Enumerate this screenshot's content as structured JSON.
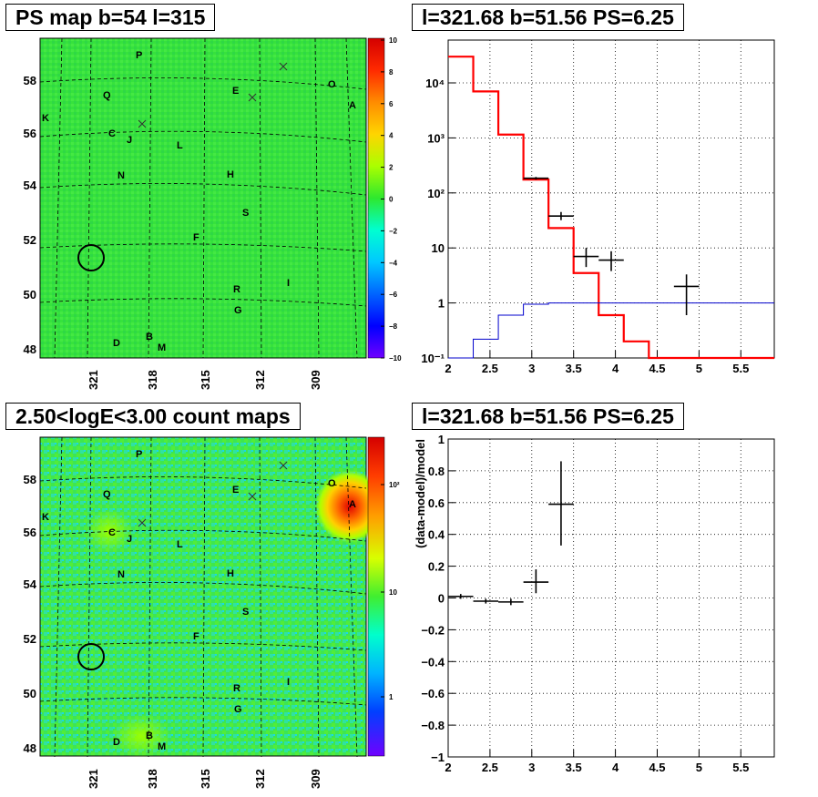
{
  "panels": {
    "ps_map": {
      "title": "PS map b=54 l=315",
      "colorbar_ticks": [
        "10",
        "8",
        "6",
        "4",
        "2",
        "0",
        "−2",
        "−4",
        "−6",
        "−8",
        "−10"
      ],
      "lat_ticks": [
        "58",
        "56",
        "54",
        "52",
        "50",
        "48"
      ],
      "lon_ticks": [
        "321",
        "318",
        "315",
        "312",
        "309"
      ]
    },
    "count_map": {
      "title": "2.50<logE<3.00 count maps",
      "colorbar_ticks": [
        "10²",
        "10",
        "1"
      ],
      "lat_ticks": [
        "58",
        "56",
        "54",
        "52",
        "50",
        "48"
      ],
      "lon_ticks": [
        "321",
        "318",
        "315",
        "312",
        "309"
      ]
    },
    "spectrum": {
      "title": "l=321.68 b=51.56 PS=6.25"
    },
    "residual": {
      "title": "l=321.68 b=51.56 PS=6.25"
    }
  },
  "source_labels": [
    "P",
    "Q",
    "K",
    "C",
    "J",
    "L",
    "N",
    "H",
    "S",
    "F",
    "E",
    "O",
    "A",
    "I",
    "R",
    "G",
    "D",
    "B",
    "M"
  ],
  "chart_data": [
    {
      "type": "heatmap",
      "title": "PS map b=54 l=315",
      "xlabel": "",
      "ylabel": "",
      "xlim": [
        323.5,
        306
      ],
      "ylim": [
        47.6,
        59.4
      ],
      "zlim": [
        -10,
        10
      ],
      "colorbar_ticks": [
        10,
        8,
        6,
        4,
        2,
        0,
        -2,
        -4,
        -6,
        -8,
        -10
      ],
      "circle": {
        "x": 321.68,
        "y": 51.56
      }
    },
    {
      "type": "heatmap",
      "title": "2.50<logE<3.00 count maps",
      "xlabel": "",
      "ylabel": "",
      "xlim": [
        323.5,
        306
      ],
      "ylim": [
        47.6,
        59.4
      ],
      "zscale": "log",
      "colorbar_ticks": [
        100,
        10,
        1
      ],
      "circle": {
        "x": 321.68,
        "y": 51.56
      }
    },
    {
      "type": "line",
      "title": "l=321.68 b=51.56 PS=6.25",
      "xlabel": "",
      "ylabel": "",
      "xlim": [
        2,
        5.9
      ],
      "ylim": [
        0.1,
        60000
      ],
      "yscale": "log",
      "x_ticks": [
        "2",
        "2.5",
        "3",
        "3.5",
        "4",
        "4.5",
        "5",
        "5.5"
      ],
      "y_ticks": [
        "10⁻¹",
        "1",
        "10",
        "10²",
        "10³",
        "10⁴"
      ],
      "grid": true,
      "series": [
        {
          "style": "step",
          "color": "#ff0000",
          "bin_edges": [
            2.0,
            2.3,
            2.6,
            2.9,
            3.2,
            3.5,
            3.8,
            4.1,
            4.4,
            5.9
          ],
          "values": [
            30000,
            7000,
            1150,
            175,
            23,
            3.5,
            0.6,
            0.2,
            0.1
          ]
        },
        {
          "style": "step",
          "color": "#0000cc",
          "bin_edges": [
            2.0,
            2.3,
            2.6,
            2.9,
            3.2,
            5.9
          ],
          "values": [
            0.05,
            0.22,
            0.6,
            0.95,
            1.0
          ]
        },
        {
          "style": "errorbar",
          "color": "#000000",
          "points": [
            {
              "x": 3.05,
              "y": 185,
              "xerr": 0.15,
              "ylo": 175,
              "yhi": 195
            },
            {
              "x": 3.35,
              "y": 38,
              "xerr": 0.15,
              "ylo": 32,
              "yhi": 45
            },
            {
              "x": 3.65,
              "y": 7,
              "xerr": 0.15,
              "ylo": 4.5,
              "yhi": 10
            },
            {
              "x": 3.95,
              "y": 6,
              "xerr": 0.15,
              "ylo": 3.8,
              "yhi": 8.7
            },
            {
              "x": 4.85,
              "y": 2,
              "xerr": 0.15,
              "ylo": 0.6,
              "yhi": 3.3
            }
          ]
        }
      ]
    },
    {
      "type": "scatter",
      "title": "l=321.68 b=51.56 PS=6.25",
      "xlabel": "",
      "ylabel": "(data-model)/model",
      "xlim": [
        2,
        5.9
      ],
      "ylim": [
        -1,
        1
      ],
      "x_ticks": [
        "2",
        "2.5",
        "3",
        "3.5",
        "4",
        "4.5",
        "5",
        "5.5"
      ],
      "y_ticks": [
        "−1",
        "−0.8",
        "−0.6",
        "−0.4",
        "−0.2",
        "0",
        "0.2",
        "0.4",
        "0.6",
        "0.8",
        "1"
      ],
      "grid": true,
      "points": [
        {
          "x": 2.15,
          "y": 0.01,
          "xerr": 0.15,
          "ylo": -0.005,
          "yhi": 0.025
        },
        {
          "x": 2.45,
          "y": -0.02,
          "xerr": 0.15,
          "ylo": -0.035,
          "yhi": -0.005
        },
        {
          "x": 2.75,
          "y": -0.025,
          "xerr": 0.15,
          "ylo": -0.045,
          "yhi": -0.005
        },
        {
          "x": 3.05,
          "y": 0.1,
          "xerr": 0.15,
          "ylo": 0.03,
          "yhi": 0.18
        },
        {
          "x": 3.35,
          "y": 0.59,
          "xerr": 0.15,
          "ylo": 0.33,
          "yhi": 0.86
        }
      ]
    }
  ]
}
